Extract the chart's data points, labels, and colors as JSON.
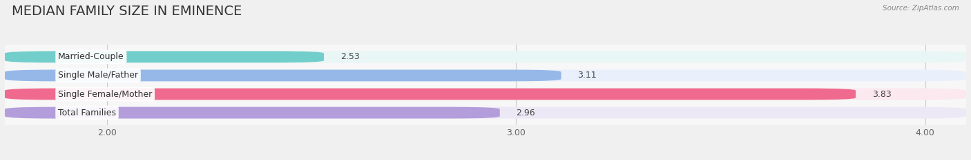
{
  "title": "MEDIAN FAMILY SIZE IN EMINENCE",
  "source": "Source: ZipAtlas.com",
  "categories": [
    "Married-Couple",
    "Single Male/Father",
    "Single Female/Mother",
    "Total Families"
  ],
  "values": [
    2.53,
    3.11,
    3.83,
    2.96
  ],
  "bar_colors": [
    "#72ceca",
    "#95b8e8",
    "#f0698e",
    "#b39ddb"
  ],
  "bar_bg_colors": [
    "#e8f6f5",
    "#eaf0fb",
    "#fce8ef",
    "#ede8f5"
  ],
  "xmin": 1.75,
  "xmax": 4.1,
  "xlim_left": 1.75,
  "xticks": [
    2.0,
    3.0,
    4.0
  ],
  "xtick_labels": [
    "2.00",
    "3.00",
    "4.00"
  ],
  "title_fontsize": 14,
  "label_fontsize": 9,
  "value_fontsize": 9,
  "bar_height": 0.62,
  "background_color": "#f0f0f0",
  "plot_bg_color": "#f7f7f7"
}
